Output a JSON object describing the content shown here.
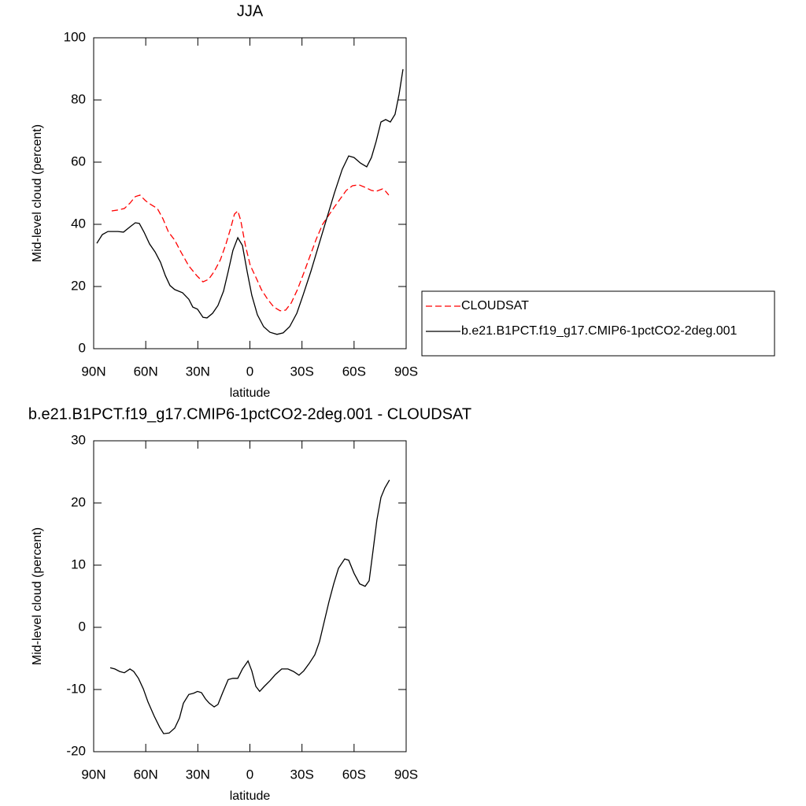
{
  "chart_data": [
    {
      "type": "line",
      "title": "JJA",
      "xlabel": "latitude",
      "ylabel": "Mid-level cloud (percent)",
      "xlim": [
        90,
        -90
      ],
      "ylim": [
        0,
        100
      ],
      "xticks": [
        {
          "value": 90,
          "label": "90N"
        },
        {
          "value": 60,
          "label": "60N"
        },
        {
          "value": 30,
          "label": "30N"
        },
        0,
        {
          "value": -30,
          "label": "30S"
        },
        {
          "value": -60,
          "label": "60S"
        },
        {
          "value": -90,
          "label": "90S"
        }
      ],
      "yticks": [
        0,
        20,
        40,
        60,
        80,
        100
      ],
      "legend": "right",
      "series": [
        {
          "name": "CLOUDSAT",
          "color": "#ff0000",
          "dash": true,
          "x": [
            79.6,
            76,
            72.3,
            69.1,
            66,
            63.3,
            60.1,
            56.9,
            53.3,
            50.1,
            46.9,
            43.3,
            39.7,
            35.2,
            30.6,
            27,
            23.8,
            20.6,
            17,
            13.8,
            11.1,
            8.9,
            7,
            5.3,
            2.6,
            -0.2,
            -3.4,
            -6.6,
            -10.2,
            -13.8,
            -17.4,
            -20.6,
            -23.8,
            -27.4,
            -31,
            -34.7,
            -38.3,
            -41.9,
            -45.5,
            -48.7,
            -51.9,
            -55.5,
            -59.1,
            -62.8,
            -66.4,
            -70,
            -72.7,
            -76.4,
            -78.2,
            -80
          ],
          "values": [
            44.3,
            44.6,
            45.1,
            46.8,
            48.9,
            49.4,
            47.6,
            46.3,
            45.1,
            41.8,
            37.5,
            34.9,
            31.1,
            26.6,
            23.5,
            21.5,
            22.3,
            24.8,
            28.6,
            33.7,
            38.7,
            43.3,
            44.3,
            41.3,
            33.2,
            26.8,
            23,
            19,
            15.9,
            13.4,
            12.2,
            12.4,
            14.7,
            19,
            24.3,
            29.9,
            35.4,
            40,
            43,
            45.6,
            48.1,
            50.9,
            52.4,
            52.7,
            51.9,
            50.9,
            50.6,
            51.4,
            50.6,
            49.4
          ]
        },
        {
          "name": "b.e21.B1PCT.f19_g17.CMIP6-1pctCO2-2deg.001",
          "color": "#000000",
          "dash": false,
          "x": [
            88.2,
            85,
            81.8,
            76,
            72.8,
            69.1,
            66,
            63.7,
            61,
            57.8,
            54.6,
            51.5,
            48.7,
            46,
            43.3,
            38.8,
            35.2,
            32.9,
            30.2,
            27,
            24.7,
            21.5,
            18.4,
            15.2,
            12.5,
            9.8,
            7,
            4.3,
            1.6,
            -1.1,
            -4.3,
            -7.9,
            -11.5,
            -15.6,
            -19.2,
            -22.9,
            -27,
            -30.6,
            -35.1,
            -39.6,
            -44.2,
            -48.7,
            -53.2,
            -56.9,
            -60,
            -63.7,
            -67.3,
            -70,
            -72.7,
            -75.5,
            -78.2,
            -80.9,
            -83.6,
            -85.9,
            -88.2
          ],
          "values": [
            33.9,
            36.7,
            37.7,
            37.7,
            37.5,
            39.2,
            40.5,
            40.3,
            37.5,
            33.7,
            31.1,
            27.8,
            23.5,
            20.3,
            19,
            18,
            15.9,
            13.4,
            12.7,
            10.1,
            9.9,
            11.4,
            13.9,
            18.5,
            24.8,
            31.6,
            35.7,
            33.2,
            24.8,
            17.2,
            10.9,
            7.1,
            5.3,
            4.6,
            5.1,
            7.1,
            11.4,
            17.2,
            24.8,
            33.2,
            41.8,
            50.1,
            57.7,
            62,
            61.5,
            59.7,
            58.5,
            61.5,
            66.6,
            72.9,
            73.7,
            72.9,
            75.4,
            81.8,
            89.9
          ]
        }
      ]
    },
    {
      "type": "line",
      "title": "b.e21.B1PCT.f19_g17.CMIP6-1pctCO2-2deg.001 - CLOUDSAT",
      "xlabel": "latitude",
      "ylabel": "Mid-level cloud (percent)",
      "xlim": [
        90,
        -90
      ],
      "ylim": [
        -20,
        30
      ],
      "xticks": [
        {
          "value": 90,
          "label": "90N"
        },
        {
          "value": 60,
          "label": "60N"
        },
        {
          "value": 30,
          "label": "30N"
        },
        0,
        {
          "value": -30,
          "label": "30S"
        },
        {
          "value": -60,
          "label": "60S"
        },
        {
          "value": -90,
          "label": "90S"
        }
      ],
      "yticks": [
        -20,
        -10,
        0,
        10,
        20,
        30
      ],
      "color": "#000000",
      "x": [
        80.5,
        77.8,
        75,
        72.3,
        69.1,
        66.9,
        64.2,
        61.4,
        58.7,
        55.1,
        51.9,
        49.7,
        46.5,
        43.3,
        40.6,
        38.3,
        35.2,
        32.4,
        30.2,
        27.9,
        25.6,
        23.4,
        20.6,
        18.4,
        15.7,
        12.5,
        9.8,
        7,
        4.3,
        1.1,
        -1.1,
        -3.4,
        -5.6,
        -8.3,
        -11.5,
        -14.7,
        -18.3,
        -21.9,
        -25.1,
        -28.3,
        -31,
        -34.2,
        -37.4,
        -40.1,
        -42.8,
        -45.5,
        -48.3,
        -51,
        -54.6,
        -56.9,
        -60,
        -63.2,
        -66.4,
        -68.7,
        -70.9,
        -73.2,
        -75.5,
        -77.7,
        -80.4
      ],
      "values": [
        -6.5,
        -6.7,
        -7.1,
        -7.3,
        -6.7,
        -7.1,
        -8.2,
        -9.9,
        -12,
        -14.3,
        -16.1,
        -17.1,
        -17,
        -16.2,
        -14.6,
        -12.2,
        -10.8,
        -10.6,
        -10.3,
        -10.5,
        -11.5,
        -12.2,
        -12.8,
        -12.4,
        -10.5,
        -8.4,
        -8.2,
        -8.2,
        -6.7,
        -5.4,
        -7,
        -9.5,
        -10.3,
        -9.5,
        -8.6,
        -7.6,
        -6.7,
        -6.7,
        -7.1,
        -7.7,
        -7,
        -5.8,
        -4.4,
        -2.3,
        0.9,
        4.1,
        7,
        9.5,
        11,
        10.8,
        8.7,
        7,
        6.6,
        7.5,
        12.3,
        17.3,
        20.9,
        22.4,
        23.7
      ]
    }
  ]
}
